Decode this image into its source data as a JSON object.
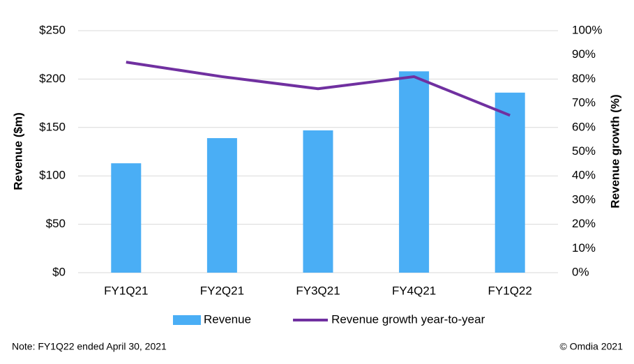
{
  "chart_data": {
    "type": "bar",
    "categories": [
      "FY1Q21",
      "FY2Q21",
      "FY3Q21",
      "FY4Q21",
      "FY1Q22"
    ],
    "series": [
      {
        "name": "Revenue",
        "type": "bar",
        "color": "#4aaef5",
        "values": [
          113,
          139,
          147,
          208,
          186
        ]
      },
      {
        "name": "Revenue growth year-to-year",
        "type": "line",
        "axis": "y2",
        "color": "#7030a0",
        "values": [
          87,
          81,
          76,
          81,
          65
        ]
      }
    ],
    "ylabel": "Revenue ($m)",
    "y2label": "Revenue growth (%)",
    "ylim": [
      0,
      250
    ],
    "yticks": [
      {
        "value": 0,
        "label": "$0"
      },
      {
        "value": 50,
        "label": "$50"
      },
      {
        "value": 100,
        "label": "$100"
      },
      {
        "value": 150,
        "label": "$150"
      },
      {
        "value": 200,
        "label": "$200"
      },
      {
        "value": 250,
        "label": "$250"
      }
    ],
    "y2lim": [
      0,
      100
    ],
    "y2ticks": [
      {
        "value": 0,
        "label": "0%"
      },
      {
        "value": 10,
        "label": "10%"
      },
      {
        "value": 20,
        "label": "20%"
      },
      {
        "value": 30,
        "label": "30%"
      },
      {
        "value": 40,
        "label": "40%"
      },
      {
        "value": 50,
        "label": "50%"
      },
      {
        "value": 60,
        "label": "60%"
      },
      {
        "value": 70,
        "label": "70%"
      },
      {
        "value": 80,
        "label": "80%"
      },
      {
        "value": 90,
        "label": "90%"
      },
      {
        "value": 100,
        "label": "100%"
      }
    ],
    "grid": true,
    "legend": "bottom",
    "note": "Note: FY1Q22 ended April 30, 2021",
    "source": "© Omdia 2021"
  }
}
